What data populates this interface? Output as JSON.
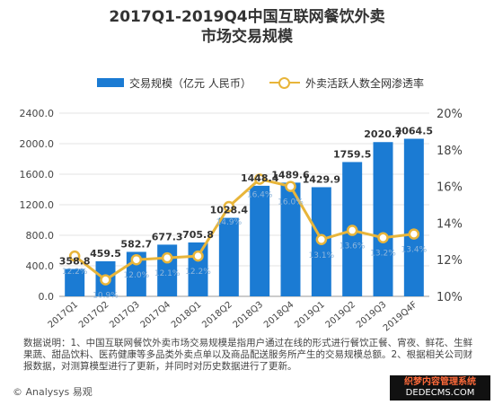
{
  "title_line1": "2017Q1-2019Q4中国互联网餐饮外卖",
  "title_line2": "市场交易规模",
  "legend": {
    "bar": "交易规模（亿元 人民币）",
    "line": "外卖活跃人数全网渗透率"
  },
  "note": "数据说明：1、中国互联网餐饮外卖市场交易规模是指用户通过在线的形式进行餐饮正餐、宵夜、鲜花、生鲜果蔬、甜品饮料、医药健康等多品类外卖点单以及商品配送服务所产生的交易规模总额。2、根据相关公司财报数据，对测算模型进行了更新，并同时对历史数据进行了更新。",
  "footer": "© Analysys 易观",
  "watermark_line1": "织梦内容管理系统",
  "watermark_line2": "DEDECMS.COM",
  "colors": {
    "bar": "#1b7bd3",
    "line": "#e8b53a",
    "grid": "#e3e3e3"
  },
  "chart_data": {
    "type": "bar",
    "categories": [
      "2017Q1",
      "2017Q2",
      "2017Q3",
      "2017Q4",
      "2018Q1",
      "2018Q2",
      "2018Q3",
      "2018Q4",
      "2019Q1",
      "2019Q2",
      "2019Q3",
      "2019Q4F"
    ],
    "series": [
      {
        "name": "交易规模（亿元 人民币）",
        "type": "bar",
        "axis": "left",
        "values": [
          358.8,
          459.5,
          582.7,
          677.3,
          705.8,
          1028.4,
          1448.4,
          1489.6,
          1429.9,
          1759.5,
          2020.7,
          2064.5
        ],
        "labels": [
          "358.8",
          "459.5",
          "582.7",
          "677.3",
          "705.8",
          "1028.4",
          "1448.4",
          "1489.6",
          "1429.9",
          "1759.5",
          "2020.7",
          "2064.5"
        ]
      },
      {
        "name": "外卖活跃人数全网渗透率",
        "type": "line",
        "axis": "right",
        "values": [
          12.2,
          10.9,
          12.0,
          12.1,
          12.2,
          14.9,
          16.4,
          16.0,
          13.1,
          13.6,
          13.2,
          13.4
        ],
        "labels": [
          "12.2%",
          "10.9%",
          "12.0%",
          "12.1%",
          "12.2%",
          "14.9%",
          "16.4%",
          "16.0%",
          "13.1%",
          "13.6%",
          "13.2%",
          "13.4%"
        ]
      }
    ],
    "ylim_left": [
      0,
      2400
    ],
    "yticks_left": [
      "0.0",
      "400.0",
      "800.0",
      "1200.0",
      "1600.0",
      "2000.0",
      "2400.0"
    ],
    "ylim_right": [
      10,
      20
    ],
    "yticks_right": [
      "10%",
      "12%",
      "14%",
      "16%",
      "18%",
      "20%"
    ],
    "grid": true,
    "legend": "top"
  }
}
